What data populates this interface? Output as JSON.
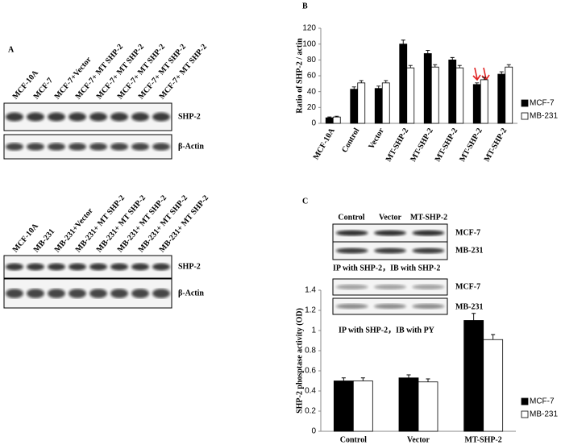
{
  "panel_a": {
    "label": "A",
    "top": {
      "lanes": [
        "MCF-10A",
        "MCF-7",
        "MCF-7+Vector",
        "MCF-7+ MT SHP-2",
        "MCF-7+ MT SHP-2",
        "MCF-7+ MT SHP-2",
        "MCF-7+ MT SHP-2",
        "MCF-7+ MT SHP-2"
      ],
      "bands": [
        "SHP-2",
        "β-Actin"
      ]
    },
    "bottom": {
      "lanes": [
        "MCF-10A",
        "MB-231",
        "MB-231+Vector",
        "MB-231+ MT SHP-2",
        "MB-231+ MT SHP-2",
        "MB-231+ MT SHP-2",
        "MB-231+ MT SHP-2",
        "MB-231+ MT SHP-2"
      ],
      "bands": [
        "SHP-2",
        "β-Actin"
      ]
    }
  },
  "panel_c_blots": {
    "lanes": [
      "Control",
      "Vector",
      "MT-SHP-2"
    ],
    "rows": [
      "MCF-7",
      "MB-231"
    ],
    "ip_rows": [
      "MCF-7",
      "MB-231"
    ],
    "caption_shp2": "IP with SHP-2，IB with SHP-2",
    "caption_py": "IP with SHP-2，IB with PY"
  },
  "chart_data": [
    {
      "type": "bar",
      "panel": "B",
      "y_label": "Ratio of SHP-2 / actin",
      "categories": [
        "MCF-10A",
        "Control",
        "Vector",
        "MT-SHP-2",
        "MT-SHP-2",
        "MT-SHP-2",
        "MT-SHP-2",
        "MT-SHP-2"
      ],
      "series": [
        {
          "name": "MCF-7",
          "color": "#000000",
          "values": [
            7,
            43,
            44,
            100,
            88,
            80,
            49,
            62
          ],
          "errors": [
            1,
            3,
            3,
            5,
            4,
            3,
            2,
            3
          ]
        },
        {
          "name": "MB-231",
          "color": "#ffffff",
          "values": [
            8,
            51,
            51,
            70,
            71,
            70,
            55,
            71
          ],
          "errors": [
            1,
            3,
            3,
            3,
            3,
            3,
            3,
            3
          ]
        }
      ],
      "ylim": [
        0,
        120
      ],
      "yticks": [
        0,
        20,
        40,
        60,
        80,
        100,
        120
      ]
    },
    {
      "type": "bar",
      "panel": "C",
      "y_label": "SHP-2 phosptase activity (OD)",
      "categories": [
        "Control",
        "Vector",
        "MT-SHP-2"
      ],
      "series": [
        {
          "name": "MCF-7",
          "color": "#000000",
          "values": [
            0.5,
            0.53,
            1.1
          ],
          "errors": [
            0.03,
            0.03,
            0.07
          ]
        },
        {
          "name": "MB-231",
          "color": "#ffffff",
          "values": [
            0.5,
            0.49,
            0.91
          ],
          "errors": [
            0.03,
            0.03,
            0.05
          ]
        }
      ],
      "ylim": [
        0,
        1.4
      ],
      "yticks": [
        0,
        0.2,
        0.4,
        0.6,
        0.8,
        1,
        1.2,
        1.4
      ]
    }
  ]
}
